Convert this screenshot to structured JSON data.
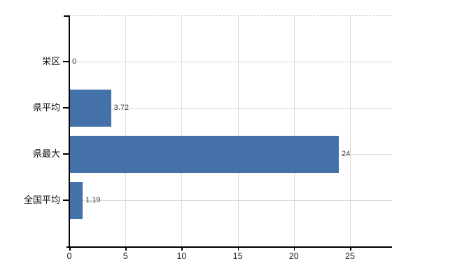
{
  "chart_data": {
    "type": "bar",
    "orientation": "horizontal",
    "title": "",
    "xlabel": "",
    "ylabel": "",
    "categories": [
      "栄区",
      "県平均",
      "県最大",
      "全国平均"
    ],
    "values": [
      0,
      3.72,
      24,
      1.19
    ],
    "value_labels": [
      "0",
      "3.72",
      "24",
      "1.19"
    ],
    "x_ticks": [
      0,
      5,
      10,
      15,
      20,
      25
    ],
    "x_tick_labels": [
      "0",
      "5",
      "10",
      "15",
      "20",
      "25"
    ],
    "xlim": [
      0,
      28.7
    ],
    "grid": "on",
    "legend": "none",
    "colors": {
      "bar": "#4471a9",
      "grid": "#d5dcd5",
      "axis": "#000000",
      "top_border": "#c9c9c9",
      "category_label": "#111111",
      "value_label": "#3d3d3d",
      "tick_label": "#1a1a1a"
    }
  }
}
